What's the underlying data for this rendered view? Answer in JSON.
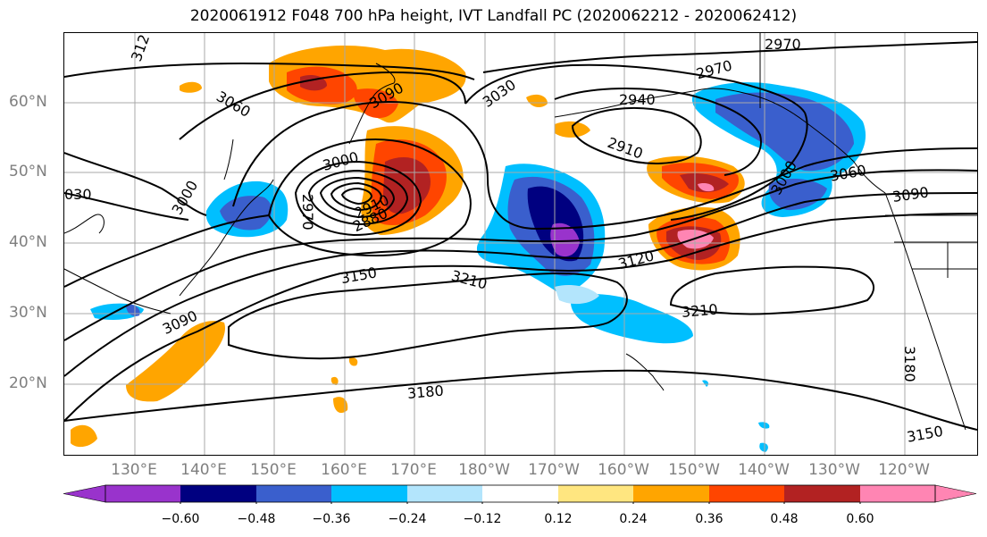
{
  "title": "2020061912 F048 700 hPa height, IVT Landfall PC (2020062212 - 2020062412)",
  "lat_labels": [
    "60°N",
    "50°N",
    "40°N",
    "30°N",
    "20°N"
  ],
  "lon_labels": [
    "130°E",
    "140°E",
    "150°E",
    "160°E",
    "170°E",
    "180°W",
    "170°W",
    "160°W",
    "150°W",
    "140°W",
    "130°W",
    "120°W"
  ],
  "contour_labels": [
    "312",
    "2970",
    "2970",
    "3060",
    "3090",
    "3030",
    "2940",
    "2910",
    "3000",
    "3000",
    "3000",
    "2970",
    "2880",
    "2910",
    "030",
    "3060",
    "3090",
    "3150",
    "3120",
    "3210",
    "3210",
    "3090",
    "3180",
    "3180",
    "3150"
  ],
  "colorbar": {
    "colors": [
      "#9933cc",
      "#000080",
      "#3a5fcd",
      "#00bfff",
      "#b3e5fc",
      "#ffffff",
      "#ffe680",
      "#ffa500",
      "#ff4500",
      "#b22222",
      "#ff85b3"
    ],
    "ticks": [
      "−0.60",
      "−0.48",
      "−0.36",
      "−0.24",
      "−0.12",
      "0.12",
      "0.24",
      "0.36",
      "0.48",
      "0.60"
    ]
  }
}
